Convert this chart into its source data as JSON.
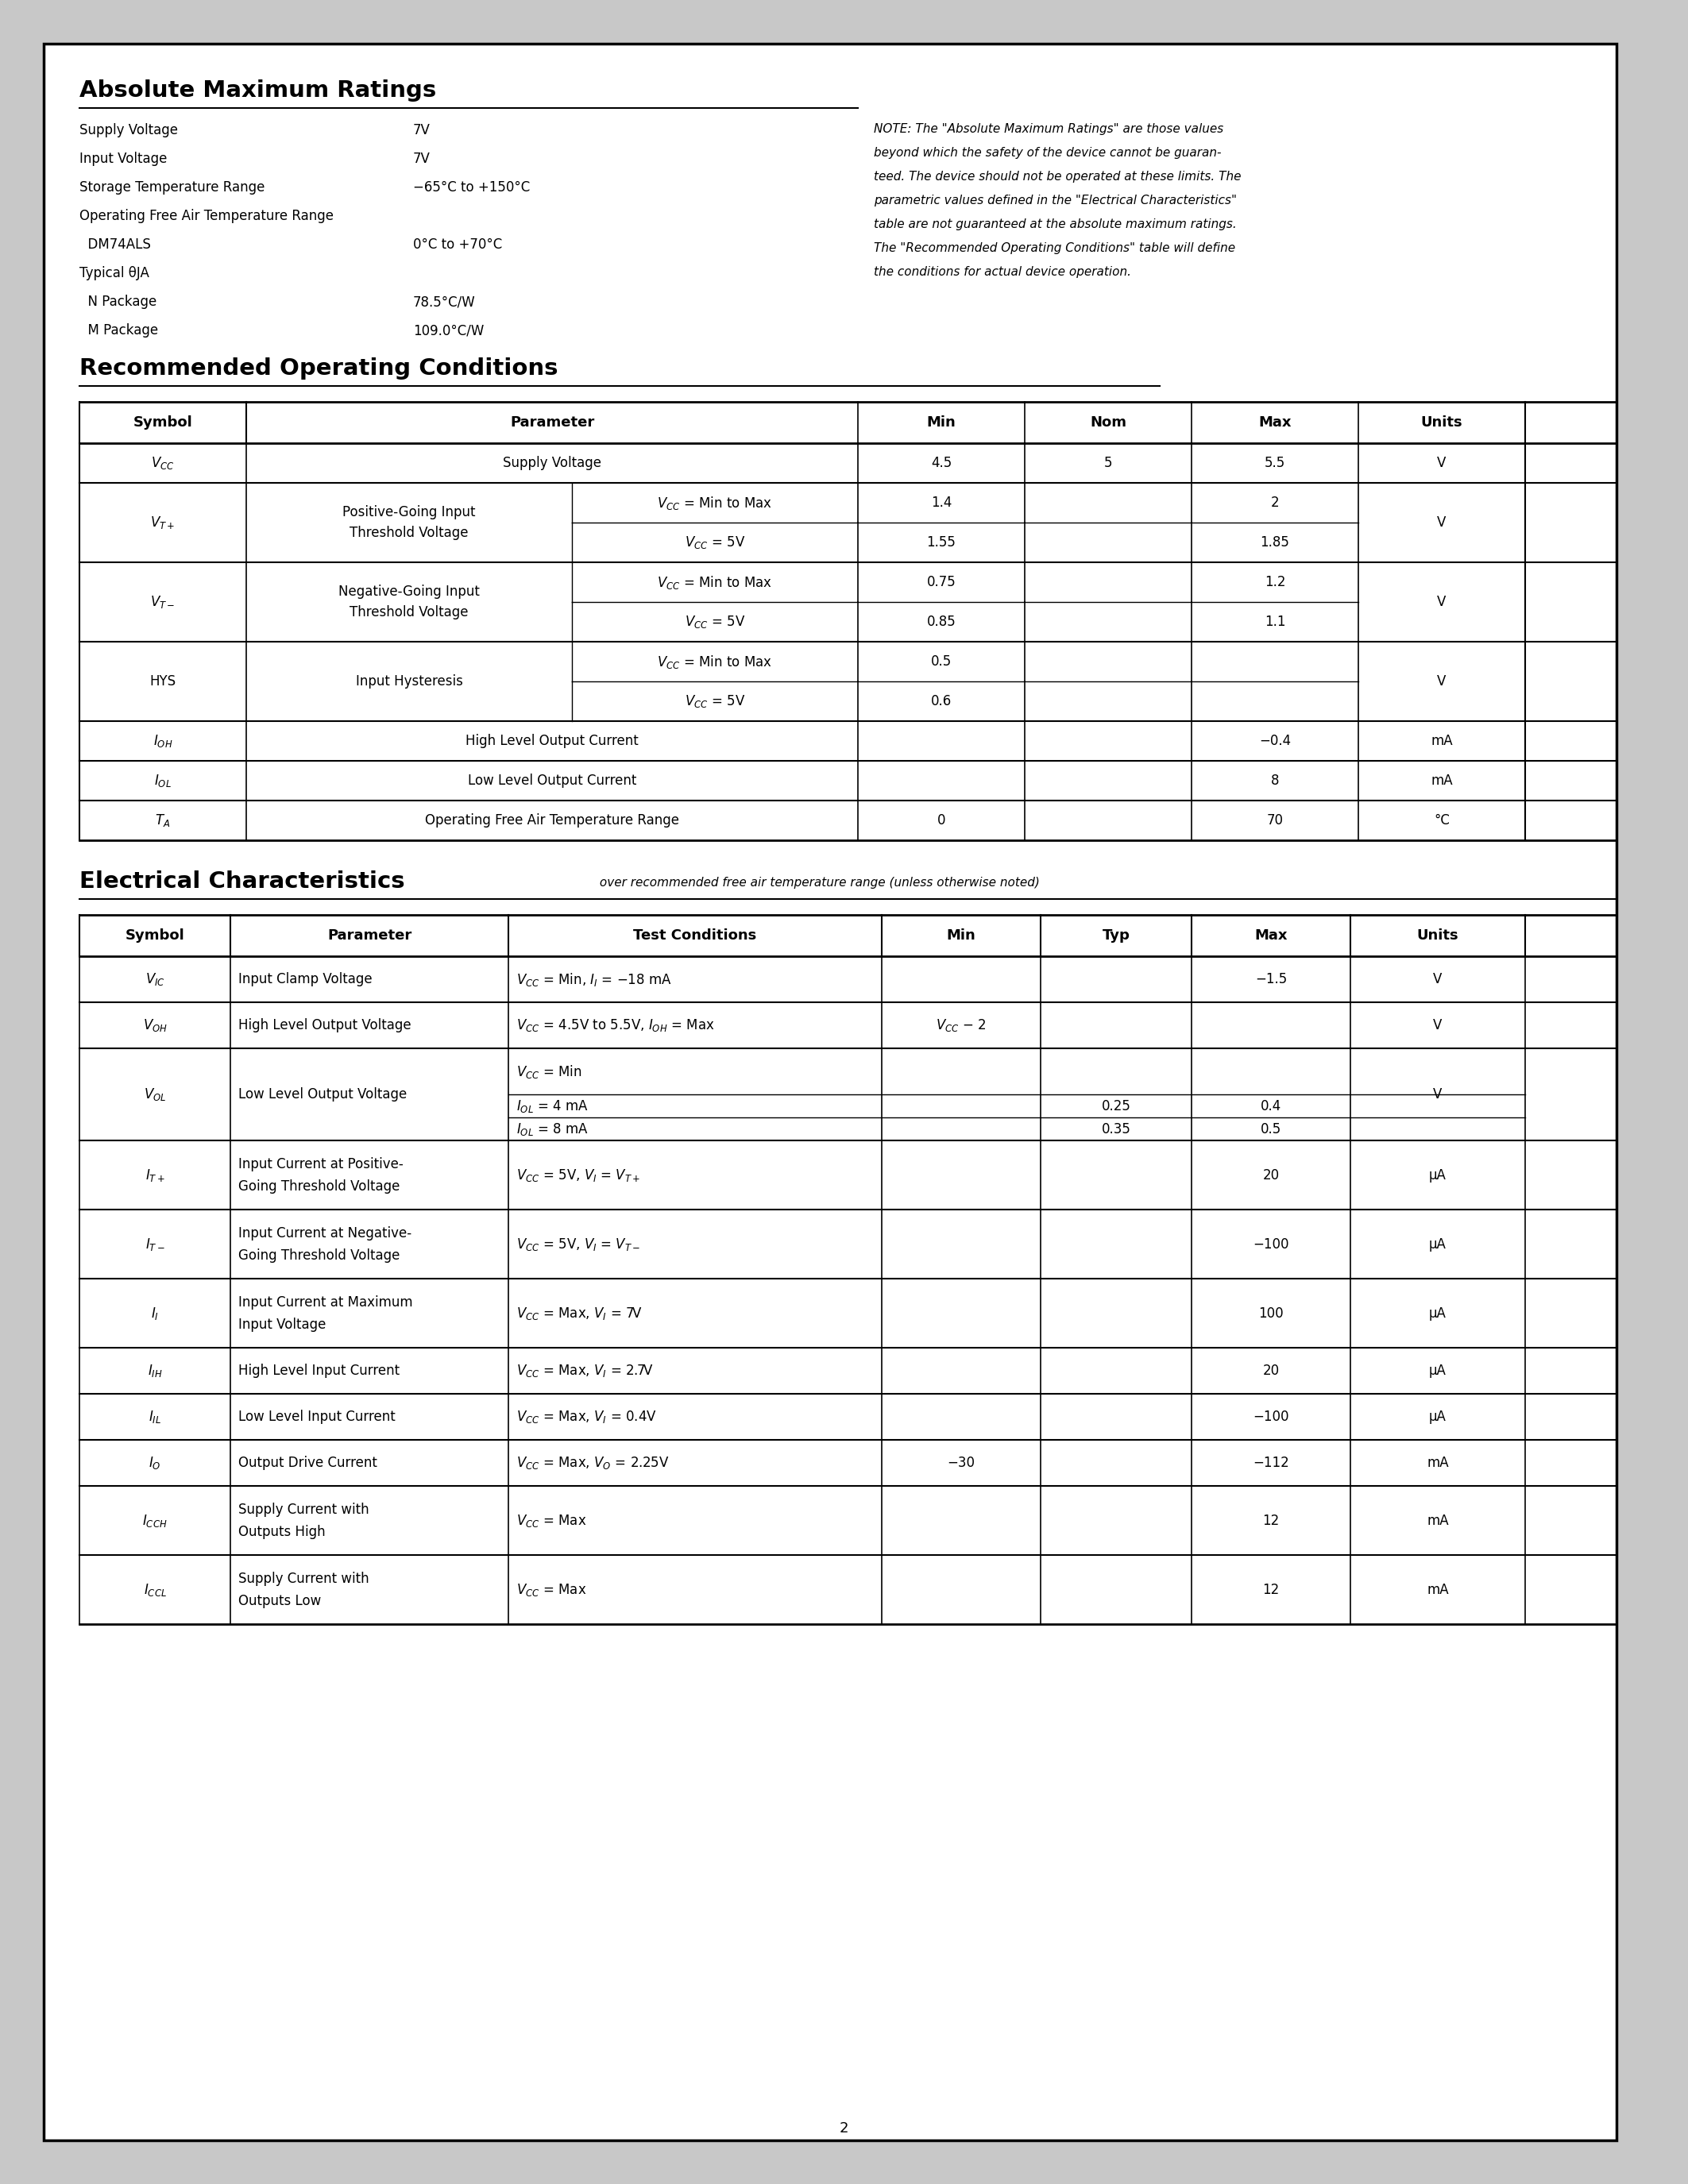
{
  "page_bg": "#ffffff",
  "border_color": "#000000",
  "title_amr": "Absolute Maximum Ratings",
  "title_roc": "Recommended Operating Conditions",
  "title_ec": "Electrical Characteristics",
  "ec_subtitle": "over recommended free air temperature range (unless otherwise noted)",
  "amr_items": [
    {
      "label": "Supply Voltage",
      "value": "7V",
      "indent": 0
    },
    {
      "label": "Input Voltage",
      "value": "7V",
      "indent": 0
    },
    {
      "label": "Storage Temperature Range",
      "value": "−65°C to +150°C",
      "indent": 0
    },
    {
      "label": "Operating Free Air Temperature Range",
      "value": "",
      "indent": 0
    },
    {
      "label": "  DM74ALS",
      "value": "0°C to +70°C",
      "indent": 1
    },
    {
      "label": "Typical θJA",
      "value": "",
      "indent": 0
    },
    {
      "label": "  N Package",
      "value": "78.5°C/W",
      "indent": 1
    },
    {
      "label": "  M Package",
      "value": "109.0°C/W",
      "indent": 1
    }
  ],
  "amr_note_lines": [
    "NOTE: The \"Absolute Maximum Ratings\" are those values",
    "beyond which the safety of the device cannot be guaran-",
    "teed. The device should not be operated at these limits. The",
    "parametric values defined in the \"Electrical Characteristics\"",
    "table are not guaranteed at the absolute maximum ratings.",
    "The \"Recommended Operating Conditions\" table will define",
    "the conditions for actual device operation."
  ],
  "roc_groups": [
    {
      "sym": "$V_{CC}$",
      "param": "Supply Voltage",
      "subs": [
        {
          "cond": "",
          "min": "4.5",
          "nom": "5",
          "max": "5.5"
        }
      ],
      "units": "V"
    },
    {
      "sym": "$V_{T+}$",
      "param": "Positive-Going Input\nThreshold Voltage",
      "subs": [
        {
          "cond": "$V_{CC}$ = Min to Max",
          "min": "1.4",
          "nom": "",
          "max": "2"
        },
        {
          "cond": "$V_{CC}$ = 5V",
          "min": "1.55",
          "nom": "",
          "max": "1.85"
        }
      ],
      "units": "V"
    },
    {
      "sym": "$V_{T-}$",
      "param": "Negative-Going Input\nThreshold Voltage",
      "subs": [
        {
          "cond": "$V_{CC}$ = Min to Max",
          "min": "0.75",
          "nom": "",
          "max": "1.2"
        },
        {
          "cond": "$V_{CC}$ = 5V",
          "min": "0.85",
          "nom": "",
          "max": "1.1"
        }
      ],
      "units": "V"
    },
    {
      "sym": "HYS",
      "param": "Input Hysteresis",
      "subs": [
        {
          "cond": "$V_{CC}$ = Min to Max",
          "min": "0.5",
          "nom": "",
          "max": ""
        },
        {
          "cond": "$V_{CC}$ = 5V",
          "min": "0.6",
          "nom": "",
          "max": ""
        }
      ],
      "units": "V"
    },
    {
      "sym": "$I_{OH}$",
      "param": "High Level Output Current",
      "subs": [
        {
          "cond": "",
          "min": "",
          "nom": "",
          "max": "−0.4"
        }
      ],
      "units": "mA"
    },
    {
      "sym": "$I_{OL}$",
      "param": "Low Level Output Current",
      "subs": [
        {
          "cond": "",
          "min": "",
          "nom": "",
          "max": "8"
        }
      ],
      "units": "mA"
    },
    {
      "sym": "$T_A$",
      "param": "Operating Free Air Temperature Range",
      "subs": [
        {
          "cond": "",
          "min": "0",
          "nom": "",
          "max": "70"
        }
      ],
      "units": "°C"
    }
  ],
  "ec_rows": [
    {
      "sym": "$V_{IC}$",
      "param": "Input Clamp Voltage",
      "cond": "$V_{CC}$ = Min, $I_I$ = −18 mA",
      "subcond": [],
      "min": "",
      "typ": "",
      "max": "−1.5",
      "units": "V"
    },
    {
      "sym": "$V_{OH}$",
      "param": "High Level Output Voltage",
      "cond": "$V_{CC}$ = 4.5V to 5.5V, $I_{OH}$ = Max",
      "subcond": [],
      "min": "$V_{CC}$ − 2",
      "typ": "",
      "max": "",
      "units": "V"
    },
    {
      "sym": "$V_{OL}$",
      "param": "Low Level Output Voltage",
      "cond": "$V_{CC}$ = Min",
      "subcond": [
        {
          "c": "$I_{OL}$ = 4 mA",
          "min": "",
          "typ": "0.25",
          "max": "0.4"
        },
        {
          "c": "$I_{OL}$ = 8 mA",
          "min": "",
          "typ": "0.35",
          "max": "0.5"
        }
      ],
      "min": "",
      "typ": "",
      "max": "",
      "units": "V"
    },
    {
      "sym": "$I_{T+}$",
      "param": "Input Current at Positive-\nGoing Threshold Voltage",
      "cond": "$V_{CC}$ = 5V, $V_I$ = $V_{T+}$",
      "subcond": [],
      "min": "",
      "typ": "",
      "max": "20",
      "units": "μA"
    },
    {
      "sym": "$I_{T-}$",
      "param": "Input Current at Negative-\nGoing Threshold Voltage",
      "cond": "$V_{CC}$ = 5V, $V_I$ = $V_{T-}$",
      "subcond": [],
      "min": "",
      "typ": "",
      "max": "−100",
      "units": "μA"
    },
    {
      "sym": "$I_I$",
      "param": "Input Current at Maximum\nInput Voltage",
      "cond": "$V_{CC}$ = Max, $V_I$ = 7V",
      "subcond": [],
      "min": "",
      "typ": "",
      "max": "100",
      "units": "μA"
    },
    {
      "sym": "$I_{IH}$",
      "param": "High Level Input Current",
      "cond": "$V_{CC}$ = Max, $V_I$ = 2.7V",
      "subcond": [],
      "min": "",
      "typ": "",
      "max": "20",
      "units": "μA"
    },
    {
      "sym": "$I_{IL}$",
      "param": "Low Level Input Current",
      "cond": "$V_{CC}$ = Max, $V_I$ = 0.4V",
      "subcond": [],
      "min": "",
      "typ": "",
      "max": "−100",
      "units": "μA"
    },
    {
      "sym": "$I_O$",
      "param": "Output Drive Current",
      "cond": "$V_{CC}$ = Max, $V_O$ = 2.25V",
      "subcond": [],
      "min": "−30",
      "typ": "",
      "max": "−112",
      "units": "mA"
    },
    {
      "sym": "$I_{CCH}$",
      "param": "Supply Current with\nOutputs High",
      "cond": "$V_{CC}$ = Max",
      "subcond": [],
      "min": "",
      "typ": "",
      "max": "12",
      "units": "mA"
    },
    {
      "sym": "$I_{CCL}$",
      "param": "Supply Current with\nOutputs Low",
      "cond": "$V_{CC}$ = Max",
      "subcond": [],
      "min": "",
      "typ": "",
      "max": "12",
      "units": "mA"
    }
  ],
  "page_number": "2"
}
